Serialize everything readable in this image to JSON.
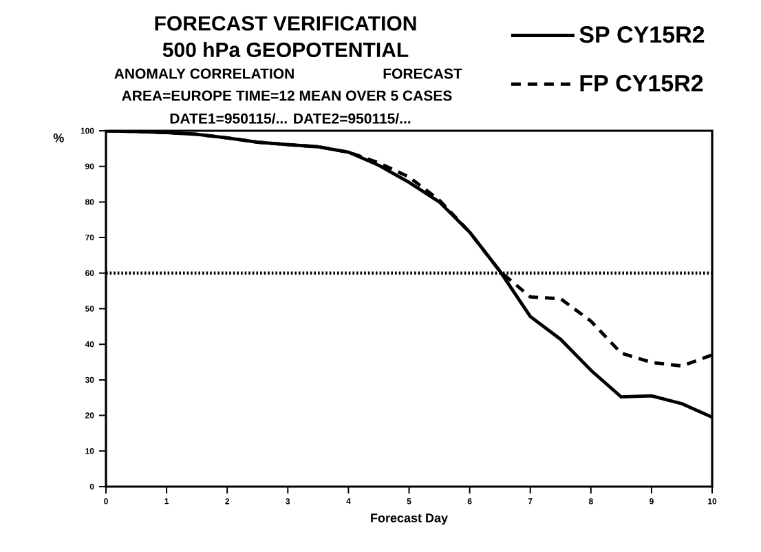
{
  "chart_data": {
    "type": "line",
    "title": "FORECAST VERIFICATION",
    "subtitle": "500 hPa GEOPOTENTIAL",
    "annotations": [
      "ANOMALY CORRELATION",
      "FORECAST",
      "AREA=EUROPE   TIME=12   MEAN OVER   5 CASES",
      "DATE1=950115/... DATE2=950115/..."
    ],
    "xlabel": "Forecast Day",
    "ylabel": "%",
    "x": [
      0,
      0.5,
      1,
      1.5,
      2,
      2.5,
      3,
      3.5,
      4,
      4.5,
      5,
      5.5,
      6,
      6.5,
      7,
      7.5,
      8,
      8.5,
      9,
      9.5,
      10
    ],
    "series": [
      {
        "name": "SP CY15R2",
        "color": "#000000",
        "line_style": "solid",
        "values": [
          100,
          99.8,
          99.5,
          99,
          98,
          96.8,
          96.1,
          95.5,
          94,
          90.3,
          85.5,
          80,
          71.5,
          60.5,
          47.8,
          41.4,
          32.7,
          25.2,
          25.5,
          23.3,
          19.5
        ]
      },
      {
        "name": "FP CY15R2",
        "color": "#000000",
        "line_style": "dashed",
        "values": [
          100,
          99.8,
          99.5,
          99,
          98,
          96.8,
          96.1,
          95.5,
          94,
          91,
          87,
          80.5,
          71.5,
          60.5,
          53.3,
          52.8,
          46.5,
          37.5,
          34.9,
          33.9,
          37
        ]
      }
    ],
    "xlim": [
      0,
      10
    ],
    "xticks": [
      0,
      1,
      2,
      3,
      4,
      5,
      6,
      7,
      8,
      9,
      10
    ],
    "ylim": [
      0,
      100
    ],
    "yticks": [
      0,
      10,
      20,
      30,
      40,
      50,
      60,
      70,
      80,
      90,
      100
    ],
    "ref_lines": [
      {
        "axis": "y",
        "value": 60,
        "color": "#000000",
        "line_style": "dotted"
      }
    ],
    "legend": "top right",
    "grid": false
  }
}
